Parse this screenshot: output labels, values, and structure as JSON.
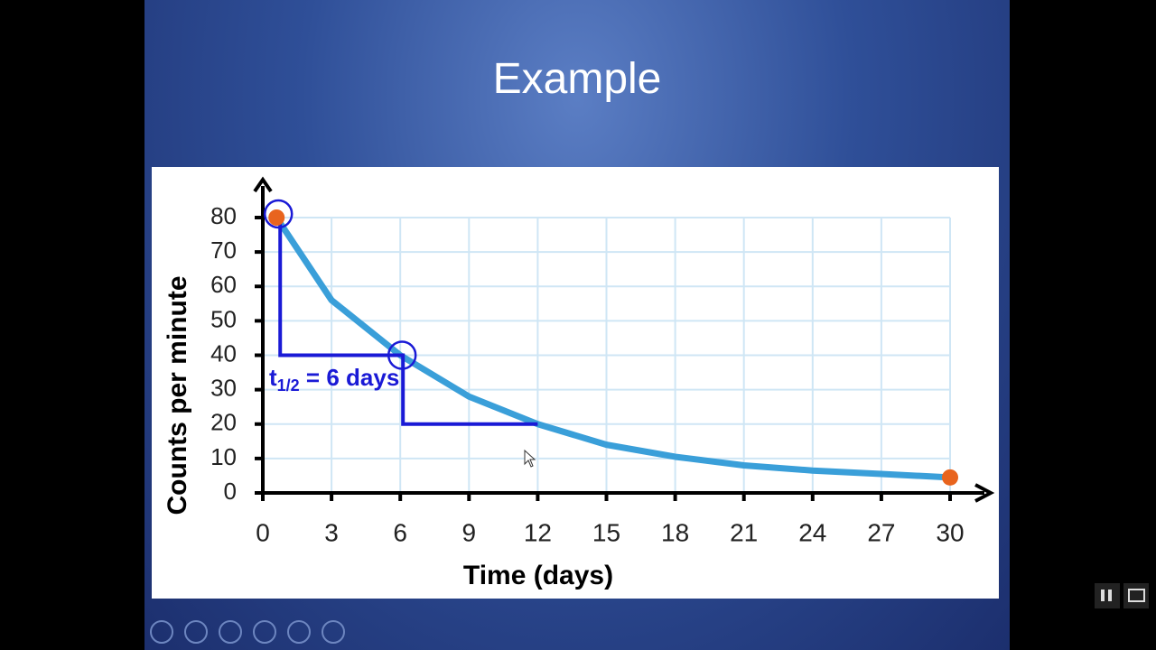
{
  "slide": {
    "title": "Example"
  },
  "chart_data": {
    "type": "line",
    "x_label": "Time (days)",
    "y_label": "Counts per minute",
    "x": [
      0.6,
      3,
      6,
      9,
      12,
      15,
      18,
      21,
      24,
      27,
      30
    ],
    "series": [
      {
        "color": "#3a9fd9",
        "values": [
          80,
          56,
          40,
          28,
          20,
          14,
          10.5,
          8,
          6.5,
          5.5,
          4.5
        ]
      }
    ],
    "marker_color": "#e8641e",
    "xlim": [
      0,
      30
    ],
    "xticks": [
      0,
      3,
      6,
      9,
      12,
      15,
      18,
      21,
      24,
      27,
      30
    ],
    "ylim": [
      0,
      80
    ],
    "yticks": [
      0,
      10,
      20,
      30,
      40,
      50,
      60,
      70,
      80
    ],
    "grid": true,
    "annotation": {
      "base": "t",
      "sub": "1/2",
      "rest": " = 6 days",
      "color": "#1a1ad6"
    }
  }
}
